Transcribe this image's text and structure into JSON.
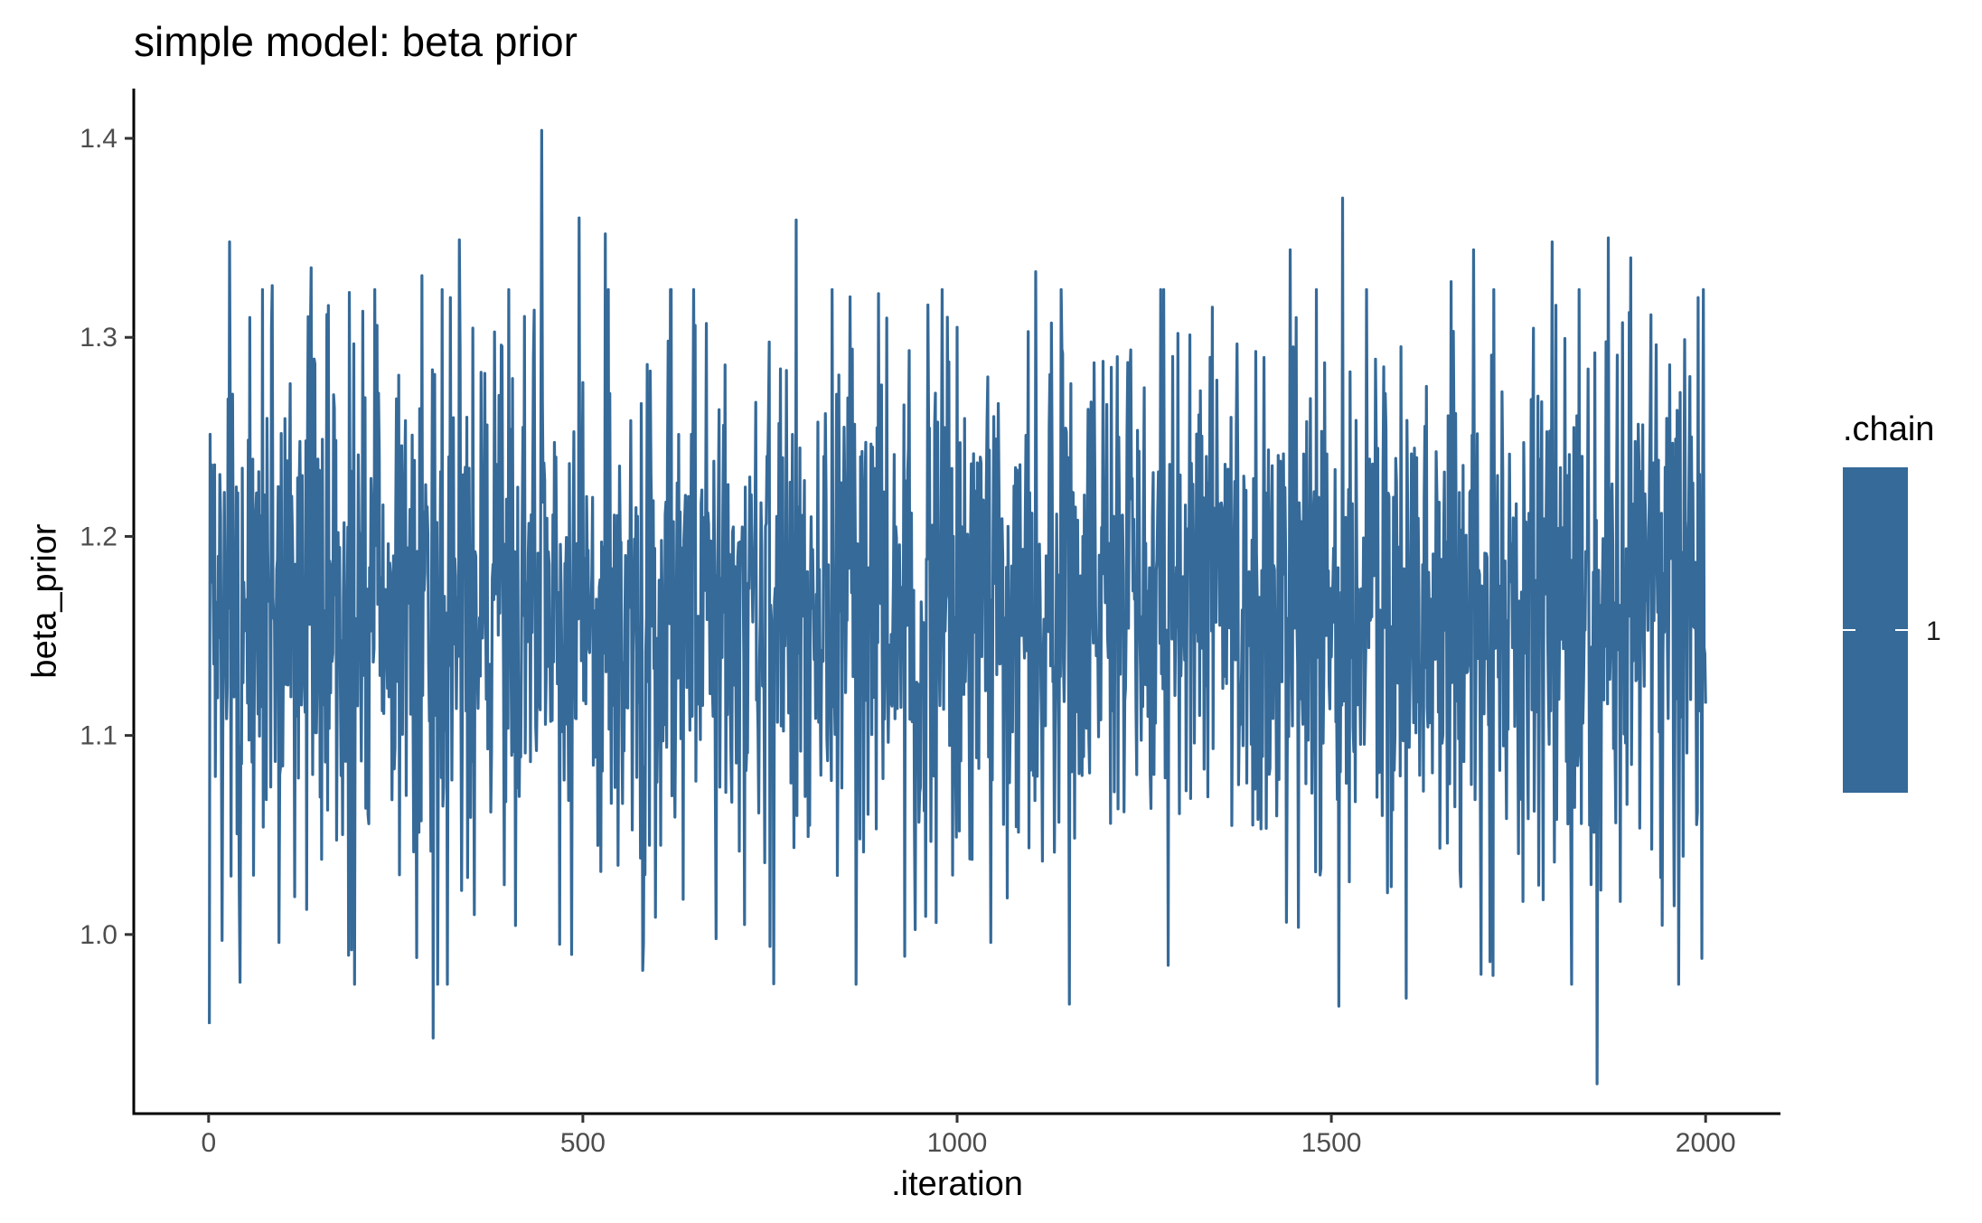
{
  "chart_data": {
    "type": "line",
    "title": "simple model: beta prior",
    "xlabel": ".iteration",
    "ylabel": "beta_prior",
    "xlim": [
      -100,
      2100
    ],
    "ylim": [
      0.91,
      1.425
    ],
    "xticks": [
      0,
      500,
      1000,
      1500,
      2000
    ],
    "xtick_labels": [
      "0",
      "500",
      "1000",
      "1500",
      "2000"
    ],
    "yticks": [
      1.0,
      1.1,
      1.2,
      1.3,
      1.4
    ],
    "ytick_labels": [
      "1.0",
      "1.1",
      "1.2",
      "1.3",
      "1.4"
    ],
    "grid": false,
    "legend": {
      "title": ".chain",
      "position": "right",
      "entries": [
        "1"
      ]
    },
    "colors": {
      "series": "#356a99",
      "axis": "#000000"
    },
    "series": [
      {
        "chain": "1",
        "x_start": 1,
        "x_step": 1,
        "n_iterations": 2000,
        "mean": 1.165,
        "sd": 0.068,
        "min": 0.925,
        "max": 1.404,
        "extremes": [
          {
            "x": 1,
            "y": 0.955
          },
          {
            "x": 4,
            "y": 1.236
          },
          {
            "x": 8,
            "y": 1.236
          },
          {
            "x": 18,
            "y": 0.997
          },
          {
            "x": 28,
            "y": 1.348
          },
          {
            "x": 42,
            "y": 0.976
          },
          {
            "x": 55,
            "y": 1.31
          },
          {
            "x": 85,
            "y": 1.326
          },
          {
            "x": 115,
            "y": 1.019
          },
          {
            "x": 137,
            "y": 1.335
          },
          {
            "x": 160,
            "y": 1.316
          },
          {
            "x": 225,
            "y": 1.306
          },
          {
            "x": 255,
            "y": 1.03
          },
          {
            "x": 285,
            "y": 1.331
          },
          {
            "x": 300,
            "y": 0.948
          },
          {
            "x": 335,
            "y": 1.349
          },
          {
            "x": 355,
            "y": 1.01
          },
          {
            "x": 395,
            "y": 1.025
          },
          {
            "x": 445,
            "y": 1.404
          },
          {
            "x": 485,
            "y": 0.99
          },
          {
            "x": 495,
            "y": 1.36
          },
          {
            "x": 530,
            "y": 1.352
          },
          {
            "x": 580,
            "y": 0.982
          },
          {
            "x": 650,
            "y": 1.306
          },
          {
            "x": 750,
            "y": 0.994
          },
          {
            "x": 785,
            "y": 1.359
          },
          {
            "x": 895,
            "y": 1.322
          },
          {
            "x": 1045,
            "y": 0.996
          },
          {
            "x": 1105,
            "y": 1.333
          },
          {
            "x": 1150,
            "y": 0.965
          },
          {
            "x": 1195,
            "y": 1.288
          },
          {
            "x": 1295,
            "y": 1.302
          },
          {
            "x": 1395,
            "y": 1.055
          },
          {
            "x": 1445,
            "y": 1.344
          },
          {
            "x": 1510,
            "y": 0.964
          },
          {
            "x": 1515,
            "y": 1.37
          },
          {
            "x": 1600,
            "y": 0.968
          },
          {
            "x": 1660,
            "y": 1.328
          },
          {
            "x": 1690,
            "y": 1.344
          },
          {
            "x": 1700,
            "y": 0.98
          },
          {
            "x": 1795,
            "y": 1.348
          },
          {
            "x": 1855,
            "y": 0.925
          },
          {
            "x": 1870,
            "y": 1.35
          },
          {
            "x": 1900,
            "y": 1.34
          },
          {
            "x": 1990,
            "y": 1.32
          },
          {
            "x": 1995,
            "y": 0.988
          },
          {
            "x": 2000,
            "y": 1.116
          }
        ]
      }
    ]
  }
}
